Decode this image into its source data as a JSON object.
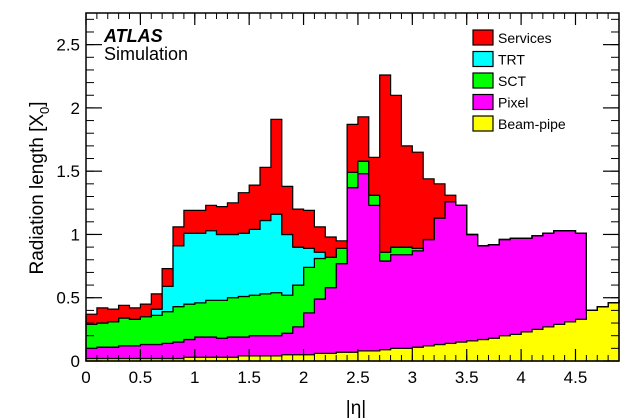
{
  "chart_data": {
    "type": "area",
    "subtype": "stacked-histogram",
    "title": "",
    "experiment_label": "ATLAS",
    "experiment_sublabel": "Simulation",
    "xlabel": "|η|",
    "ylabel": "Radiation length [X0]",
    "ylabel_main": "Radiation length [X",
    "ylabel_sub": "0",
    "ylabel_end": "]",
    "xlim": [
      0,
      4.9
    ],
    "ylim": [
      0,
      2.75
    ],
    "xticks": [
      0,
      0.5,
      1,
      1.5,
      2,
      2.5,
      3,
      3.5,
      4,
      4.5
    ],
    "xtick_labels": [
      "0",
      "0.5",
      "1",
      "1.5",
      "2",
      "2.5",
      "3",
      "3.5",
      "4",
      "4.5"
    ],
    "yticks": [
      0,
      0.5,
      1,
      1.5,
      2,
      2.5
    ],
    "ytick_labels": [
      "0",
      "0.5",
      "1",
      "1.5",
      "2",
      "2.5"
    ],
    "legend_position": "top-right",
    "legend": [
      {
        "name": "Services",
        "color": "#ff0000"
      },
      {
        "name": "TRT",
        "color": "#00ffff"
      },
      {
        "name": "SCT",
        "color": "#00ff00"
      },
      {
        "name": "Pixel",
        "color": "#ff00ff"
      },
      {
        "name": "Beam-pipe",
        "color": "#ffff00"
      }
    ],
    "x": [
      0,
      0.1,
      0.2,
      0.3,
      0.4,
      0.5,
      0.6,
      0.7,
      0.8,
      0.9,
      1.0,
      1.1,
      1.2,
      1.3,
      1.4,
      1.5,
      1.6,
      1.7,
      1.8,
      1.9,
      2.0,
      2.1,
      2.2,
      2.3,
      2.4,
      2.5,
      2.6,
      2.7,
      2.8,
      2.9,
      3.0,
      3.1,
      3.2,
      3.3,
      3.4,
      3.5,
      3.6,
      3.7,
      3.8,
      3.9,
      4.0,
      4.1,
      4.2,
      4.3,
      4.4,
      4.5,
      4.6,
      4.7,
      4.8,
      4.9
    ],
    "series": [
      {
        "name": "Beam-pipe",
        "color": "#ffff00",
        "values": [
          0.02,
          0.02,
          0.02,
          0.02,
          0.02,
          0.02,
          0.02,
          0.02,
          0.02,
          0.03,
          0.03,
          0.03,
          0.03,
          0.03,
          0.04,
          0.04,
          0.04,
          0.04,
          0.05,
          0.05,
          0.05,
          0.06,
          0.06,
          0.07,
          0.07,
          0.08,
          0.08,
          0.09,
          0.1,
          0.1,
          0.11,
          0.12,
          0.13,
          0.14,
          0.15,
          0.16,
          0.17,
          0.18,
          0.2,
          0.21,
          0.23,
          0.25,
          0.27,
          0.29,
          0.31,
          0.33,
          0.4,
          0.43,
          0.46,
          0.48
        ]
      },
      {
        "name": "Pixel",
        "color": "#ff00ff",
        "values": [
          0.08,
          0.09,
          0.09,
          0.1,
          0.1,
          0.11,
          0.11,
          0.12,
          0.13,
          0.14,
          0.16,
          0.16,
          0.15,
          0.16,
          0.15,
          0.16,
          0.16,
          0.16,
          0.17,
          0.22,
          0.33,
          0.43,
          0.52,
          0.7,
          1.3,
          1.4,
          1.15,
          0.7,
          0.74,
          0.74,
          0.76,
          0.84,
          1.0,
          1.12,
          1.08,
          0.84,
          0.74,
          0.74,
          0.76,
          0.76,
          0.74,
          0.74,
          0.74,
          0.74,
          0.72,
          0.68,
          0,
          0,
          0,
          0
        ]
      },
      {
        "name": "SCT",
        "color": "#00ff00",
        "values": [
          0.19,
          0.19,
          0.2,
          0.22,
          0.21,
          0.22,
          0.23,
          0.25,
          0.28,
          0.28,
          0.27,
          0.29,
          0.3,
          0.31,
          0.32,
          0.32,
          0.33,
          0.34,
          0.3,
          0.33,
          0.36,
          0.32,
          0.24,
          0.12,
          0.12,
          0.1,
          0.08,
          0.07,
          0.06,
          0.06,
          0.02,
          0,
          0,
          0,
          0,
          0,
          0,
          0,
          0,
          0,
          0,
          0,
          0,
          0,
          0,
          0,
          0,
          0,
          0,
          0
        ]
      },
      {
        "name": "TRT",
        "color": "#00ffff",
        "values": [
          0,
          0,
          0,
          0,
          0,
          0,
          0.05,
          0.2,
          0.48,
          0.56,
          0.55,
          0.55,
          0.52,
          0.5,
          0.5,
          0.52,
          0.58,
          0.62,
          0.48,
          0.3,
          0.15,
          0.05,
          0,
          0,
          0,
          0,
          0,
          0,
          0,
          0,
          0,
          0,
          0,
          0,
          0,
          0,
          0,
          0,
          0,
          0,
          0,
          0,
          0,
          0,
          0,
          0,
          0,
          0,
          0,
          0
        ]
      },
      {
        "name": "Services",
        "color": "#ff0000",
        "values": [
          0.08,
          0.12,
          0.1,
          0.1,
          0.09,
          0.1,
          0.12,
          0.14,
          0.15,
          0.18,
          0.18,
          0.2,
          0.22,
          0.25,
          0.32,
          0.35,
          0.42,
          0.75,
          0.38,
          0.3,
          0.3,
          0.2,
          0.16,
          0.06,
          0.38,
          0.35,
          0.3,
          1.4,
          1.2,
          0.8,
          0.76,
          0.48,
          0.27,
          0.05,
          0,
          0,
          0,
          0,
          0,
          0,
          0,
          0,
          0,
          0,
          0,
          0,
          0,
          0,
          0,
          0
        ]
      }
    ]
  }
}
